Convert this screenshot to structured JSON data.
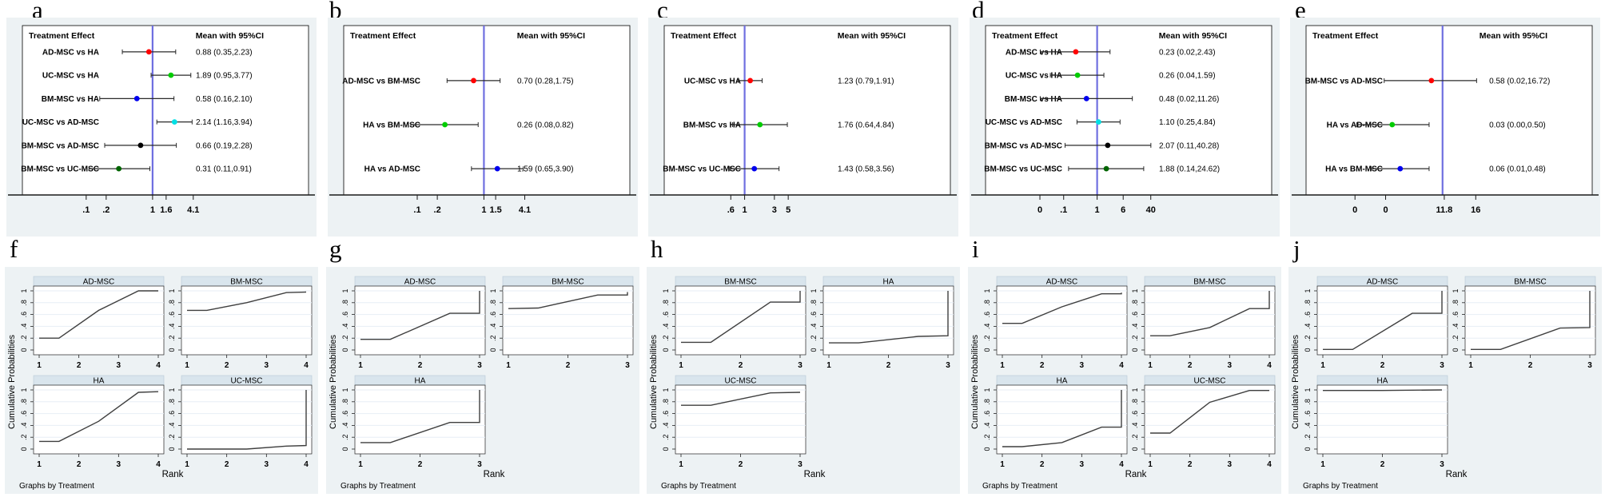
{
  "labels": {
    "treatment_effect": "Treatment Effect",
    "mean_ci": "Mean with 95%CI",
    "rank": "Rank",
    "cumulative": "Cumulative Probabilities",
    "note": "Graphs by Treatment"
  },
  "colors": {
    "figure_bg": "#edf2f4",
    "strip": "#d9e5ed",
    "strip_border": "#b8c9d6",
    "grid": "#e7eef5",
    "ref_line": "#6f6fe0",
    "ci_line": "#2a2a2a",
    "cum_line": "#3f3f3f",
    "frame": "#000000"
  },
  "chart_data": {
    "type": "forest-plots-and-cumulative-rank-line-small-multiples",
    "forest_panels": [
      {
        "letter": "a",
        "type": "forest",
        "scale": {
          "ref_rel": 0.455,
          "per_decade_rel": 0.232
        },
        "ticks": [
          {
            "label": ".1",
            "value": 0.1
          },
          {
            "label": ".2",
            "value": 0.2
          },
          {
            "label": "1",
            "value": 1
          },
          {
            "label": "1.6",
            "value": 1.6
          },
          {
            "label": "4.1",
            "value": 4.1
          }
        ],
        "rows": [
          {
            "label": "AD-MSC vs HA",
            "color": "#ff0000",
            "mean": 0.88,
            "lo": 0.35,
            "hi": 2.23,
            "display": "0.88 (0.35,2.23)"
          },
          {
            "label": "UC-MSC vs HA",
            "color": "#00cc00",
            "mean": 1.89,
            "lo": 0.95,
            "hi": 3.77,
            "display": "1.89 (0.95,3.77)"
          },
          {
            "label": "BM-MSC vs HA",
            "color": "#0000ee",
            "mean": 0.58,
            "lo": 0.16,
            "hi": 2.1,
            "display": "0.58 (0.16,2.10)"
          },
          {
            "label": "UC-MSC vs AD-MSC",
            "color": "#00e0e5",
            "mean": 2.14,
            "lo": 1.16,
            "hi": 3.94,
            "display": "2.14 (1.16,3.94)"
          },
          {
            "label": "BM-MSC vs AD-MSC",
            "color": "#000000",
            "mean": 0.66,
            "lo": 0.19,
            "hi": 2.28,
            "display": "0.66 (0.19,2.28)"
          },
          {
            "label": "BM-MSC vs UC-MSC",
            "color": "#006400",
            "mean": 0.31,
            "lo": 0.11,
            "hi": 0.91,
            "display": "0.31 (0.11,0.91)"
          }
        ]
      },
      {
        "letter": "b",
        "type": "forest",
        "scale": {
          "ref_rel": 0.49,
          "per_decade_rel": 0.233
        },
        "ticks": [
          {
            "label": ".1",
            "value": 0.1
          },
          {
            "label": ".2",
            "value": 0.2
          },
          {
            "label": "1",
            "value": 1
          },
          {
            "label": "1.5",
            "value": 1.5
          },
          {
            "label": "4.1",
            "value": 4.1
          }
        ],
        "rows": [
          {
            "label": "AD-MSC vs BM-MSC",
            "color": "#ff0000",
            "mean": 0.7,
            "lo": 0.28,
            "hi": 1.75,
            "display": "0.70 (0.28,1.75)"
          },
          {
            "label": "HA vs BM-MSC",
            "color": "#00cc00",
            "mean": 0.26,
            "lo": 0.08,
            "hi": 0.82,
            "display": "0.26 (0.08,0.82)"
          },
          {
            "label": "HA vs AD-MSC",
            "color": "#0000ee",
            "mean": 1.59,
            "lo": 0.65,
            "hi": 3.9,
            "display": "1.59 (0.65,3.90)"
          }
        ]
      },
      {
        "letter": "c",
        "type": "forest",
        "scale": {
          "ref_rel": 0.281,
          "per_decade_rel": 0.218
        },
        "ticks": [
          {
            "label": ".6",
            "value": 0.6
          },
          {
            "label": "1",
            "value": 1
          },
          {
            "label": "3",
            "value": 3
          },
          {
            "label": "5",
            "value": 5
          }
        ],
        "rows": [
          {
            "label": "UC-MSC vs HA",
            "color": "#ff0000",
            "mean": 1.23,
            "lo": 0.79,
            "hi": 1.91,
            "display": "1.23 (0.79,1.91)"
          },
          {
            "label": "BM-MSC vs HA",
            "color": "#00cc00",
            "mean": 1.76,
            "lo": 0.64,
            "hi": 4.84,
            "display": "1.76 (0.64,4.84)"
          },
          {
            "label": "BM-MSC vs UC-MSC",
            "color": "#0000ee",
            "mean": 1.43,
            "lo": 0.58,
            "hi": 3.56,
            "display": "1.43 (0.58,3.56)"
          }
        ]
      },
      {
        "letter": "d",
        "type": "forest",
        "scale": {
          "ref_rel": 0.39,
          "per_decade_rel": 0.117
        },
        "ticks": [
          {
            "label": "0",
            "rel": 0.19
          },
          {
            "label": ".1",
            "value": 0.1
          },
          {
            "label": "1",
            "value": 1
          },
          {
            "label": "6",
            "value": 6
          },
          {
            "label": "40",
            "value": 40
          }
        ],
        "rows": [
          {
            "label": "AD-MSC vs HA",
            "color": "#ff0000",
            "mean": 0.23,
            "lo": 0.02,
            "hi": 2.43,
            "display": "0.23 (0.02,2.43)"
          },
          {
            "label": "UC-MSC vs HA",
            "color": "#00cc00",
            "mean": 0.26,
            "lo": 0.04,
            "hi": 1.59,
            "display": "0.26 (0.04,1.59)"
          },
          {
            "label": "BM-MSC vs HA",
            "color": "#0000ee",
            "mean": 0.48,
            "lo": 0.02,
            "hi": 11.26,
            "display": "0.48 (0.02,11.26)"
          },
          {
            "label": "UC-MSC vs AD-MSC",
            "color": "#00e0e5",
            "mean": 1.1,
            "lo": 0.25,
            "hi": 4.84,
            "display": "1.10 (0.25,4.84)"
          },
          {
            "label": "BM-MSC vs AD-MSC",
            "color": "#000000",
            "mean": 2.07,
            "lo": 0.11,
            "hi": 40.28,
            "display": "2.07 (0.11,40.28)"
          },
          {
            "label": "BM-MSC vs UC-MSC",
            "color": "#006400",
            "mean": 1.88,
            "lo": 0.14,
            "hi": 24.62,
            "display": "1.88 (0.14,24.62)"
          }
        ]
      },
      {
        "letter": "e",
        "type": "forest",
        "scale": {
          "ref_rel": 0.477,
          "per_decade_rel": 0.12
        },
        "value_rel": 0.64,
        "ticks": [
          {
            "label": "0",
            "rel": 0.171
          },
          {
            "label": "0",
            "rel": 0.278
          },
          {
            "label": "11.8",
            "rel": 0.483
          },
          {
            "label": "16",
            "rel": 0.593
          }
        ],
        "rows": [
          {
            "label": "BM-MSC vs AD-MSC",
            "color": "#ff0000",
            "mean": 0.58,
            "lo": 0.02,
            "hi": 16.72,
            "display": "0.58 (0.02,16.72)",
            "pos": {
              "lo": 0.273,
              "mid": 0.438,
              "hi": 0.596
            }
          },
          {
            "label": "HA vs AD-MSC",
            "color": "#00cc00",
            "mean": 0.03,
            "lo": 0.0,
            "hi": 0.5,
            "display": "0.03 (0.00,0.50)",
            "pos": {
              "lo": 0.177,
              "mid": 0.301,
              "hi": 0.43
            }
          },
          {
            "label": "HA vs BM-MSC",
            "color": "#0000ee",
            "mean": 0.06,
            "lo": 0.01,
            "hi": 0.48,
            "display": "0.06 (0.01,0.48)",
            "pos": {
              "lo": 0.228,
              "mid": 0.329,
              "hi": 0.43
            }
          }
        ]
      }
    ],
    "cum_yticks": [
      {
        "label": "0",
        "value": 0
      },
      {
        "label": ".2",
        "value": 0.2
      },
      {
        "label": ".4",
        "value": 0.4
      },
      {
        "label": ".6",
        "value": 0.6
      },
      {
        "label": ".8",
        "value": 0.8
      },
      {
        "label": "1",
        "value": 1
      }
    ],
    "cum_panels": [
      {
        "letter": "f",
        "type": "line",
        "max_rank": 4,
        "cells": [
          {
            "name": "AD-MSC",
            "row": 0,
            "col": 0,
            "points": [
              [
                1,
                0.2
              ],
              [
                1.5,
                0.2
              ],
              [
                2.5,
                0.67
              ],
              [
                3.5,
                1
              ],
              [
                4,
                1
              ]
            ]
          },
          {
            "name": "BM-MSC",
            "row": 0,
            "col": 1,
            "points": [
              [
                1,
                0.67
              ],
              [
                1.5,
                0.67
              ],
              [
                2.5,
                0.8
              ],
              [
                3.5,
                0.97
              ],
              [
                4,
                0.98
              ]
            ]
          },
          {
            "name": "HA",
            "row": 1,
            "col": 0,
            "points": [
              [
                1,
                0.13
              ],
              [
                1.5,
                0.13
              ],
              [
                2.5,
                0.47
              ],
              [
                3.5,
                0.96
              ],
              [
                4,
                0.97
              ]
            ]
          },
          {
            "name": "UC-MSC",
            "row": 1,
            "col": 1,
            "points": [
              [
                1,
                0
              ],
              [
                2.5,
                0
              ],
              [
                3.5,
                0.05
              ],
              [
                4,
                0.06
              ],
              [
                4,
                1
              ]
            ]
          }
        ]
      },
      {
        "letter": "g",
        "type": "line",
        "max_rank": 3,
        "cells": [
          {
            "name": "AD-MSC",
            "row": 0,
            "col": 0,
            "points": [
              [
                1,
                0.18
              ],
              [
                1.5,
                0.18
              ],
              [
                2.5,
                0.62
              ],
              [
                3,
                0.62
              ],
              [
                3,
                1
              ]
            ]
          },
          {
            "name": "BM-MSC",
            "row": 0,
            "col": 1,
            "points": [
              [
                1,
                0.7
              ],
              [
                1.5,
                0.71
              ],
              [
                2.5,
                0.93
              ],
              [
                3,
                0.93
              ],
              [
                3,
                0.98
              ]
            ]
          },
          {
            "name": "HA",
            "row": 1,
            "col": 0,
            "points": [
              [
                1,
                0.11
              ],
              [
                1.5,
                0.11
              ],
              [
                2.5,
                0.45
              ],
              [
                3,
                0.45
              ],
              [
                3,
                1
              ]
            ]
          }
        ]
      },
      {
        "letter": "h",
        "type": "line",
        "max_rank": 3,
        "cells": [
          {
            "name": "BM-MSC",
            "row": 0,
            "col": 0,
            "points": [
              [
                1,
                0.13
              ],
              [
                1.5,
                0.13
              ],
              [
                2.5,
                0.81
              ],
              [
                3,
                0.81
              ],
              [
                3,
                1
              ]
            ]
          },
          {
            "name": "HA",
            "row": 0,
            "col": 1,
            "points": [
              [
                1,
                0.12
              ],
              [
                1.5,
                0.12
              ],
              [
                2.5,
                0.23
              ],
              [
                3,
                0.24
              ],
              [
                3,
                1
              ]
            ]
          },
          {
            "name": "UC-MSC",
            "row": 1,
            "col": 0,
            "points": [
              [
                1,
                0.74
              ],
              [
                1.5,
                0.74
              ],
              [
                2.5,
                0.95
              ],
              [
                3,
                0.96
              ]
            ]
          }
        ]
      },
      {
        "letter": "i",
        "type": "line",
        "max_rank": 4,
        "cells": [
          {
            "name": "AD-MSC",
            "row": 0,
            "col": 0,
            "points": [
              [
                1,
                0.45
              ],
              [
                1.5,
                0.45
              ],
              [
                2.5,
                0.73
              ],
              [
                3.5,
                0.95
              ],
              [
                4,
                0.95
              ],
              [
                4,
                0.97
              ]
            ]
          },
          {
            "name": "BM-MSC",
            "row": 0,
            "col": 1,
            "points": [
              [
                1,
                0.24
              ],
              [
                1.5,
                0.24
              ],
              [
                2.5,
                0.38
              ],
              [
                3.5,
                0.7
              ],
              [
                4,
                0.7
              ],
              [
                4,
                1
              ]
            ]
          },
          {
            "name": "HA",
            "row": 1,
            "col": 0,
            "points": [
              [
                1,
                0.04
              ],
              [
                1.5,
                0.04
              ],
              [
                2.5,
                0.11
              ],
              [
                3.5,
                0.37
              ],
              [
                4,
                0.37
              ],
              [
                4,
                1
              ]
            ]
          },
          {
            "name": "UC-MSC",
            "row": 1,
            "col": 1,
            "points": [
              [
                1,
                0.27
              ],
              [
                1.5,
                0.27
              ],
              [
                2.5,
                0.79
              ],
              [
                3.5,
                0.99
              ],
              [
                4,
                0.99
              ]
            ]
          }
        ]
      },
      {
        "letter": "j",
        "type": "line",
        "max_rank": 3,
        "cells": [
          {
            "name": "AD-MSC",
            "row": 0,
            "col": 0,
            "points": [
              [
                1,
                0.01
              ],
              [
                1.5,
                0.01
              ],
              [
                2.5,
                0.62
              ],
              [
                3,
                0.62
              ],
              [
                3,
                1
              ]
            ]
          },
          {
            "name": "BM-MSC",
            "row": 0,
            "col": 1,
            "points": [
              [
                1,
                0.01
              ],
              [
                1.5,
                0.01
              ],
              [
                2.5,
                0.37
              ],
              [
                3,
                0.38
              ],
              [
                3,
                1
              ]
            ]
          },
          {
            "name": "HA",
            "row": 1,
            "col": 0,
            "points": [
              [
                1,
                0.99
              ],
              [
                2,
                0.99
              ],
              [
                3,
                1
              ]
            ]
          }
        ]
      }
    ]
  }
}
